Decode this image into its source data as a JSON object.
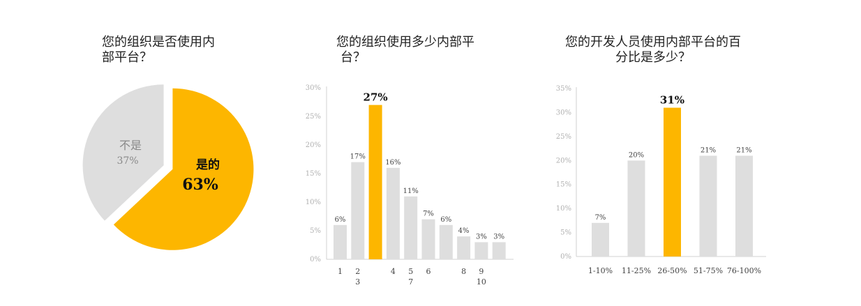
{
  "chart_data": [
    {
      "type": "pie",
      "title_lines": [
        "您的组织是否使用内",
        "部平台？"
      ],
      "slices": [
        {
          "label": "是的",
          "value": 63,
          "value_label": "63%",
          "color": "#FDB600"
        },
        {
          "label": "不是",
          "value": 37,
          "value_label": "37%",
          "color": "#DEDEDE"
        }
      ]
    },
    {
      "type": "bar",
      "title_lines": [
        "您的组织使用多少内部平",
        "台？"
      ],
      "ylim": [
        0,
        30
      ],
      "yticks": [
        "0%",
        "5%",
        "10%",
        "15%",
        "20%",
        "25%",
        "30%"
      ],
      "values": [
        6,
        17,
        27,
        16,
        11,
        7,
        6,
        4,
        3,
        3
      ],
      "value_labels": [
        "6%",
        "17%",
        "27%",
        "16%",
        "11%",
        "7%",
        "6%",
        "4%",
        "3%",
        "3%"
      ],
      "x_tick_labels": [
        {
          "text": "1",
          "bar": 0,
          "row": 0
        },
        {
          "text": "2",
          "bar": 1,
          "row": 0
        },
        {
          "text": "3",
          "bar": 1,
          "row": 1
        },
        {
          "text": "4",
          "bar": 3,
          "row": 0
        },
        {
          "text": "5",
          "bar": 4,
          "row": 0
        },
        {
          "text": "7",
          "bar": 4,
          "row": 1
        },
        {
          "text": "6",
          "bar": 5,
          "row": 0
        },
        {
          "text": "8",
          "bar": 7,
          "row": 0
        },
        {
          "text": "9",
          "bar": 8,
          "row": 0
        },
        {
          "text": "10",
          "bar": 8,
          "row": 1
        }
      ],
      "highlight_index": 2,
      "colors": {
        "bar": "#DEDEDE",
        "highlight": "#FDB600"
      }
    },
    {
      "type": "bar",
      "title_lines": [
        "您的开发人员使用内部平台的百",
        "分比是多少？"
      ],
      "ylim": [
        0,
        35
      ],
      "yticks": [
        "0%",
        "5%",
        "10%",
        "15%",
        "20%",
        "25%",
        "30%",
        "35%"
      ],
      "categories": [
        "1-10%",
        "11-25%",
        "26-50%",
        "51-75%",
        "76-100%"
      ],
      "values": [
        7,
        20,
        31,
        21,
        21
      ],
      "value_labels": [
        "7%",
        "20%",
        "31%",
        "21%",
        "21%"
      ],
      "highlight_index": 2,
      "colors": {
        "bar": "#DEDEDE",
        "highlight": "#FDB600"
      }
    }
  ]
}
